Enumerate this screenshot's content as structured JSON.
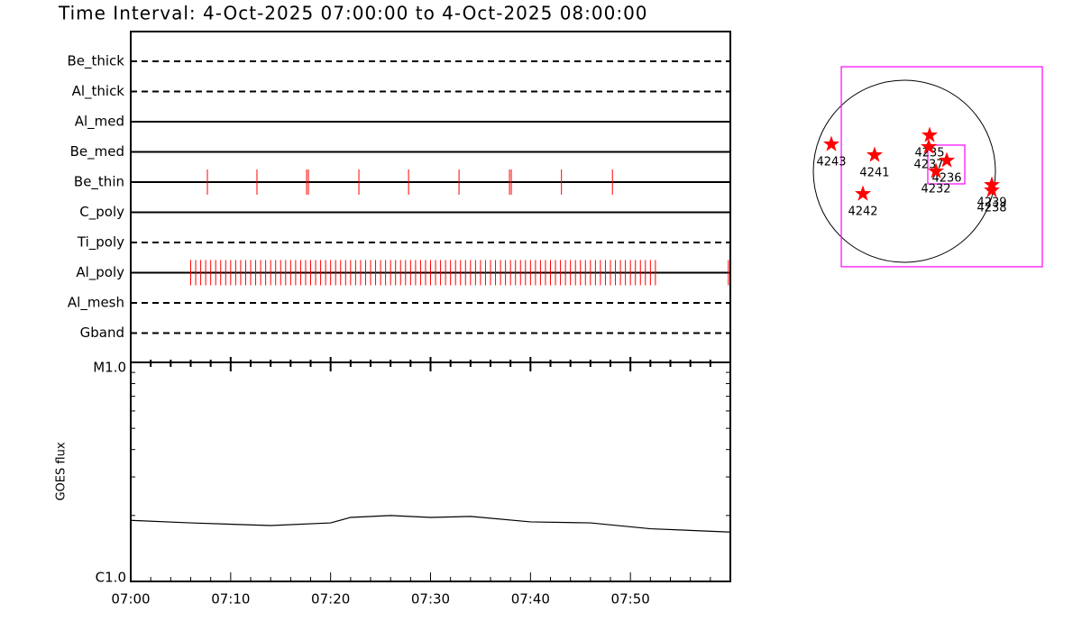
{
  "title": "Time Interval:  4-Oct-2025 07:00:00 to  4-Oct-2025 08:00:00",
  "chart_data": [
    {
      "type": "event",
      "xlim": [
        0,
        60
      ],
      "series": [
        {
          "name": "Be_thick",
          "style": "dashed",
          "color": "#ff0000",
          "values": []
        },
        {
          "name": "Al_thick",
          "style": "dashed",
          "color": "#ff0000",
          "values": []
        },
        {
          "name": "Al_med",
          "style": "solid",
          "color": "#ff0000",
          "values": []
        },
        {
          "name": "Be_med",
          "style": "solid",
          "color": "#ff0000",
          "values": []
        },
        {
          "name": "Be_thin",
          "style": "solid",
          "color": "#ff0000",
          "values": [
            7.67,
            12.63,
            17.6,
            17.78,
            22.83,
            27.8,
            32.85,
            37.9,
            38.08,
            43.1,
            48.2
          ]
        },
        {
          "name": "C_poly",
          "style": "solid",
          "color": "#ff0000",
          "values": []
        },
        {
          "name": "Ti_poly",
          "style": "dashed",
          "color": "#ff0000",
          "values": []
        },
        {
          "name": "Al_poly",
          "style": "solid",
          "color": "#ff0000",
          "values": [
            6,
            6.5,
            7,
            7.5,
            8,
            8.5,
            9,
            9.5,
            10,
            10.5,
            11,
            11.5,
            12,
            12.5,
            13,
            13.5,
            14,
            14.5,
            15,
            15.5,
            16,
            16.5,
            17,
            17.5,
            18,
            18.5,
            19,
            19.5,
            20,
            20.5,
            21,
            21.5,
            22,
            22.5,
            23,
            23.5,
            24,
            24.5,
            25,
            25.5,
            26,
            26.5,
            27,
            27.5,
            28,
            28.5,
            29,
            29.5,
            30,
            30.5,
            31,
            31.5,
            32,
            32.5,
            33,
            33.5,
            34,
            34.5,
            35,
            35.5,
            36,
            36.5,
            37,
            37.5,
            38,
            38.5,
            39,
            39.5,
            40,
            40.5,
            41,
            41.5,
            42,
            42.5,
            43,
            43.5,
            44,
            44.5,
            45,
            45.5,
            46,
            46.5,
            47,
            47.5,
            48,
            48.5,
            49,
            49.5,
            50,
            50.5,
            51,
            51.5,
            52,
            52.5,
            59.8
          ]
        },
        {
          "name": "Al_mesh",
          "style": "dashed",
          "color": "#ff0000",
          "values": []
        },
        {
          "name": "Gband",
          "style": "dashed",
          "color": "#ff0000",
          "values": []
        }
      ]
    },
    {
      "type": "line",
      "ylabel": "GOES flux",
      "log": true,
      "color": "#000000",
      "x": [
        0,
        6,
        14,
        20,
        22,
        26,
        30,
        34,
        40,
        46,
        52,
        60
      ],
      "values": [
        1.9e-06,
        1.85e-06,
        1.8e-06,
        1.85e-06,
        1.96e-06,
        2e-06,
        1.96e-06,
        1.98e-06,
        1.87e-06,
        1.85e-06,
        1.74e-06,
        1.68e-06
      ],
      "xlim": [
        0,
        60
      ],
      "xticks": [
        {
          "value": 0,
          "label": "07:00"
        },
        {
          "value": 10,
          "label": "07:10"
        },
        {
          "value": 20,
          "label": "07:20"
        },
        {
          "value": 30,
          "label": "07:30"
        },
        {
          "value": 40,
          "label": "07:40"
        },
        {
          "value": 50,
          "label": "07:50"
        }
      ],
      "xminor_ticks": [
        2,
        4,
        6,
        8,
        12,
        14,
        16,
        18,
        22,
        24,
        26,
        28,
        32,
        34,
        36,
        38,
        42,
        44,
        46,
        48,
        52,
        54,
        56,
        58
      ],
      "ylim": [
        1e-06,
        1e-05
      ],
      "yticks": [
        {
          "value": 1e-06,
          "label": "C1.0"
        },
        {
          "value": 1e-05,
          "label": "M1.0"
        }
      ],
      "yminor_ticks": [
        2e-06,
        3e-06,
        4e-06,
        5e-06,
        6e-06,
        7e-06,
        8e-06,
        9e-06
      ]
    },
    {
      "type": "map",
      "solar_radius": 960,
      "star_color": "#ff0000",
      "box_color": "#ff00ff",
      "fov_box": {
        "x": [
          -665,
          1454
        ],
        "y": [
          -1007,
          1102
        ]
      },
      "zoom_box": {
        "x": [
          247,
          637
        ],
        "y": [
          -133,
          276
        ]
      },
      "regions": [
        {
          "label": "4243",
          "x": -770,
          "y": 285
        },
        {
          "label": "4241",
          "x": -314,
          "y": 171
        },
        {
          "label": "4235",
          "x": 266,
          "y": 380
        },
        {
          "label": "4237",
          "x": 257,
          "y": 257
        },
        {
          "label": "4236",
          "x": 447,
          "y": 114
        },
        {
          "label": "4232",
          "x": 333,
          "y": 0
        },
        {
          "label": "4242",
          "x": -437,
          "y": -238
        },
        {
          "label": "4239",
          "x": 922,
          "y": -143
        },
        {
          "label": "4238",
          "x": 922,
          "y": -200
        }
      ]
    }
  ]
}
